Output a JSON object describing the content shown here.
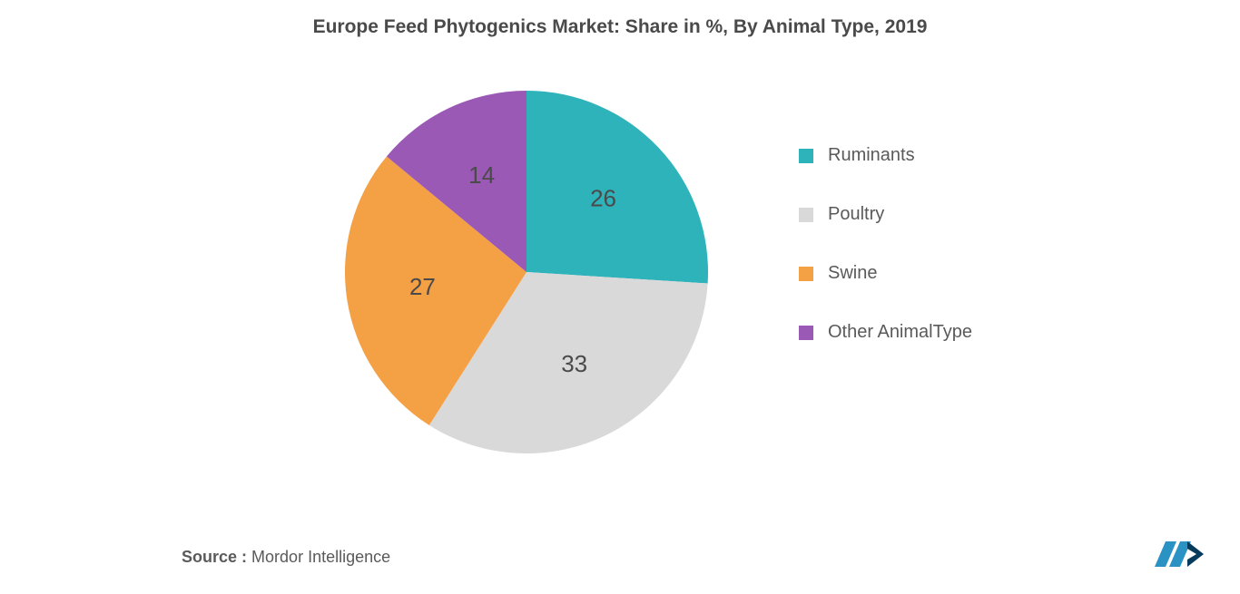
{
  "title": "Europe Feed Phytogenics Market: Share in %, By Animal Type, 2019",
  "source_label": "Source :",
  "source_value": "Mordor Intelligence",
  "chart": {
    "type": "pie",
    "background_color": "#ffffff",
    "radius": 200,
    "label_fontsize": 26,
    "label_color": "#4a4a4a",
    "title_fontsize": 21,
    "legend_fontsize": 20,
    "start_angle_deg": -90,
    "slices": [
      {
        "label": "Ruminants",
        "value": 26,
        "color": "#2fb3bb"
      },
      {
        "label": "Poultry",
        "value": 33,
        "color": "#d9d9d9"
      },
      {
        "label": "Swine",
        "value": 27,
        "color": "#f4a045"
      },
      {
        "label": "Other AnimalType",
        "value": 14,
        "color": "#9b59b6"
      }
    ]
  },
  "logo": {
    "bars": [
      "#2a93c4",
      "#2a93c4"
    ],
    "chevron": "#073b5c"
  }
}
